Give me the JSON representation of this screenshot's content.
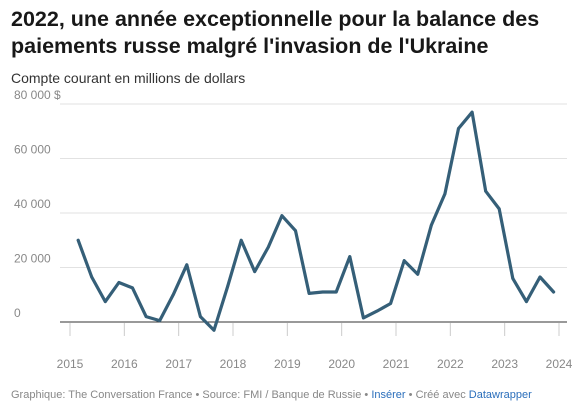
{
  "header": {
    "title": "2022, une année exceptionnelle pour la balance des paiements russe malgré l'invasion de l'Ukraine",
    "subtitle": "Compte courant en millions de dollars"
  },
  "chart_data": {
    "type": "line",
    "title": "2022, une année exceptionnelle pour la balance des paiements russe malgré l'invasion de l'Ukraine",
    "subtitle": "Compte courant en millions de dollars",
    "xlabel": "",
    "ylabel": "",
    "ylim": [
      0,
      80000
    ],
    "xlim": [
      2015,
      2024
    ],
    "y_ticks": [
      {
        "value": 80000,
        "label": "80 000 $"
      },
      {
        "value": 60000,
        "label": "60 000"
      },
      {
        "value": 40000,
        "label": "40 000"
      },
      {
        "value": 20000,
        "label": "20 000"
      },
      {
        "value": 0,
        "label": "0"
      }
    ],
    "x_ticks": [
      {
        "value": 2015,
        "label": "2015"
      },
      {
        "value": 2016,
        "label": "2016"
      },
      {
        "value": 2017,
        "label": "2017"
      },
      {
        "value": 2018,
        "label": "2018"
      },
      {
        "value": 2019,
        "label": "2019"
      },
      {
        "value": 2020,
        "label": "2020"
      },
      {
        "value": 2021,
        "label": "2021"
      },
      {
        "value": 2022,
        "label": "2022"
      },
      {
        "value": 2023,
        "label": "2023"
      },
      {
        "value": 2024,
        "label": "2024"
      }
    ],
    "grid": true,
    "color": "#355f78",
    "series": [
      {
        "x": [
          2015.15,
          2015.4,
          2015.65,
          2015.9,
          2016.15,
          2016.4,
          2016.65,
          2016.9,
          2017.15,
          2017.4,
          2017.65,
          2017.9,
          2018.15,
          2018.4,
          2018.65,
          2018.9,
          2019.15,
          2019.4,
          2019.65,
          2019.9,
          2020.15,
          2020.4,
          2020.65,
          2020.9,
          2021.15,
          2021.4,
          2021.65,
          2021.9,
          2022.15,
          2022.4,
          2022.65,
          2022.9,
          2023.15,
          2023.4,
          2023.65,
          2023.9
        ],
        "y": [
          30000,
          16500,
          7500,
          14500,
          12500,
          2000,
          500,
          10000,
          21000,
          2000,
          -3000,
          13000,
          30000,
          18500,
          27500,
          39000,
          33500,
          10500,
          11000,
          11000,
          24000,
          1500,
          4000,
          6800,
          22500,
          17500,
          35500,
          47000,
          71000,
          77000,
          48000,
          41500,
          16000,
          7500,
          16500,
          11000
        ]
      }
    ]
  },
  "footer": {
    "credit": "Graphique: The Conversation France",
    "sep1": "•",
    "source": "Source: FMI / Banque de Russie",
    "sep2": "•",
    "embed": "Insérer",
    "sep3": "•",
    "created": "Créé avec",
    "tool": "Datawrapper"
  }
}
